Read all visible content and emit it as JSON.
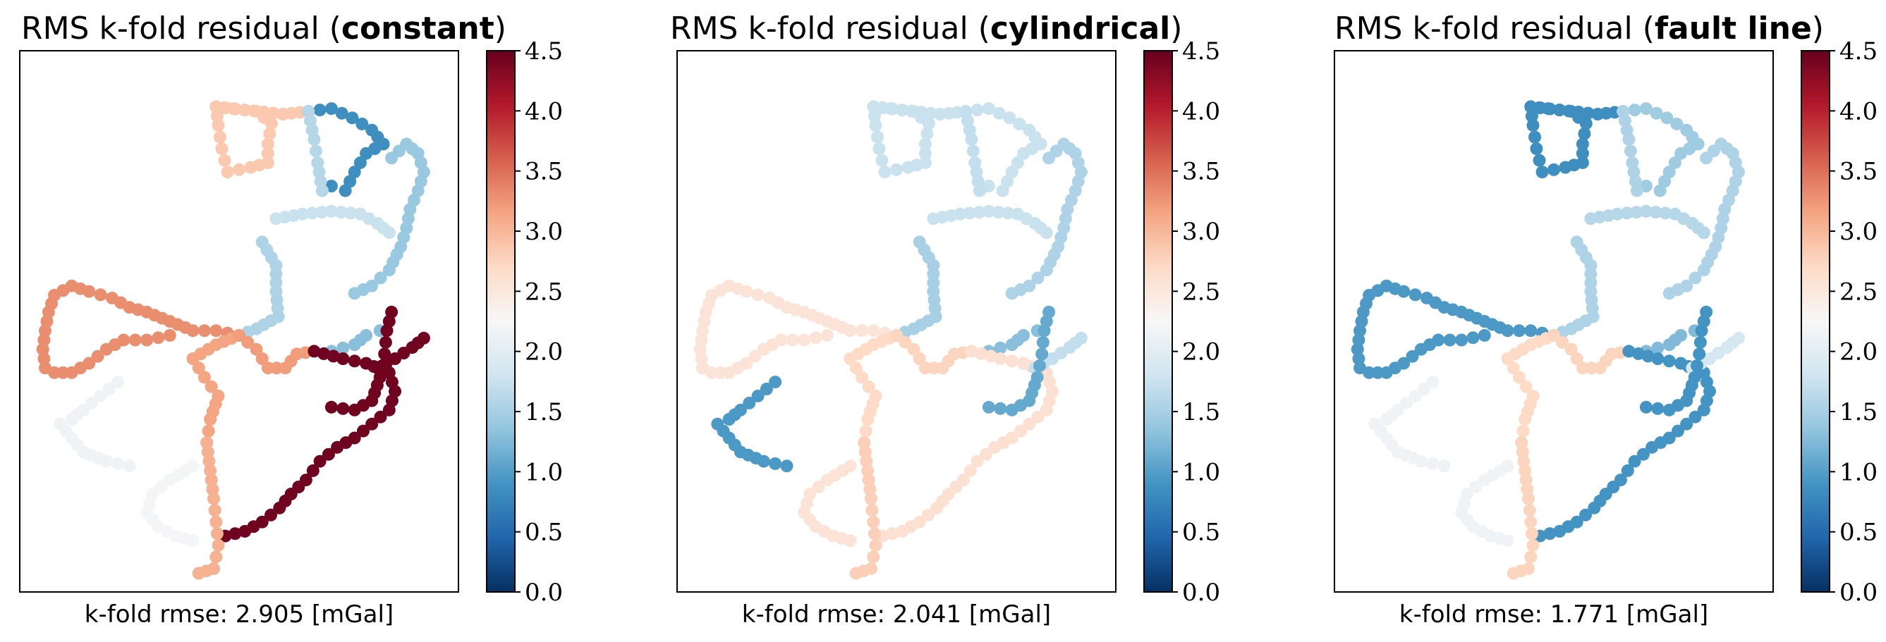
{
  "chart_data": [
    {
      "type": "scatter",
      "title": "RMS k-fold residual (constant)",
      "title_prefix": "RMS k-fold residual (",
      "title_bold": "constant",
      "title_suffix": ")",
      "xlabel": "k-fold rmse: 2.905 [mGal]",
      "colorbar": {
        "cmap": "RdBu_r",
        "vmin": 0.0,
        "vmax": 4.5,
        "ticks": [
          "0.0",
          "0.5",
          "1.0",
          "1.5",
          "2.0",
          "2.5",
          "3.0",
          "3.5",
          "4.0",
          "4.5"
        ]
      },
      "segment_values": [
        2.85,
        0.85,
        1.6,
        1.4,
        1.75,
        1.55,
        3.3,
        3.15,
        3.2,
        1.3,
        4.45,
        4.45,
        3.05,
        4.45,
        2.15,
        2.2
      ],
      "axes_visible": false
    },
    {
      "type": "scatter",
      "title": "RMS k-fold residual (cylindrical)",
      "title_prefix": "RMS k-fold residual (",
      "title_bold": "cylindrical",
      "title_suffix": ")",
      "xlabel": "k-fold rmse: 2.041 [mGal]",
      "colorbar": {
        "cmap": "RdBu_r",
        "vmin": 0.0,
        "vmax": 4.5,
        "ticks": [
          "0.0",
          "0.5",
          "1.0",
          "1.5",
          "2.0",
          "2.5",
          "3.0",
          "3.5",
          "4.0",
          "4.5"
        ]
      },
      "segment_values": [
        1.75,
        1.75,
        1.7,
        1.55,
        1.75,
        1.5,
        2.55,
        2.7,
        2.75,
        1.3,
        2.6,
        1.7,
        2.8,
        1.1,
        0.95,
        2.55
      ],
      "axes_visible": false
    },
    {
      "type": "scatter",
      "title": "RMS k-fold residual (fault line)",
      "title_prefix": "RMS k-fold residual (",
      "title_bold": "fault line",
      "title_suffix": ")",
      "xlabel": "k-fold rmse: 1.771 [mGal]",
      "colorbar": {
        "cmap": "RdBu_r",
        "vmin": 0.0,
        "vmax": 4.5,
        "ticks": [
          "0.0",
          "0.5",
          "1.0",
          "1.5",
          "2.0",
          "2.5",
          "3.0",
          "3.5",
          "4.0",
          "4.5"
        ]
      },
      "segment_values": [
        0.85,
        1.45,
        1.55,
        1.55,
        1.6,
        1.55,
        0.95,
        2.7,
        2.75,
        1.25,
        0.9,
        1.85,
        2.75,
        0.9,
        2.15,
        2.15
      ],
      "axes_visible": false
    }
  ]
}
